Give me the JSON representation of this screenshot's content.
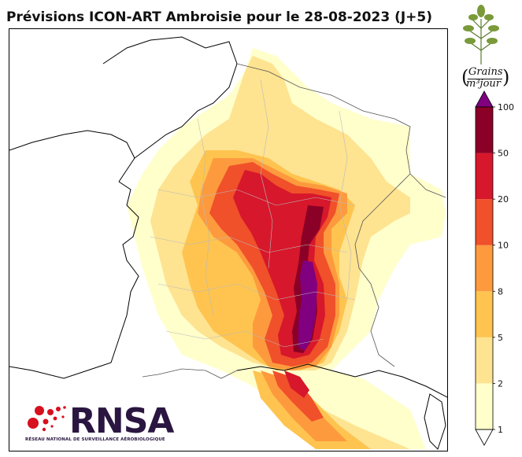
{
  "title": "Prévisions ICON-ART Ambroisie pour le 28-08-2023 (J+5)",
  "unit": {
    "numerator": "Grains",
    "denominator": "m³jour"
  },
  "colorbar": {
    "levels": [
      {
        "label": "1",
        "color": "#ffffcc"
      },
      {
        "label": "2",
        "color": "#fee391"
      },
      {
        "label": "5",
        "color": "#fec44f"
      },
      {
        "label": "8",
        "color": "#fd9a3e"
      },
      {
        "label": "10",
        "color": "#f0502a"
      },
      {
        "label": "20",
        "color": "#d7172b"
      },
      {
        "label": "50",
        "color": "#8b0026"
      },
      {
        "label": "100",
        "color": "#800080"
      }
    ],
    "under_color": "#ffffff",
    "over_color": "#800080"
  },
  "logo": {
    "name": "RNSA",
    "subtitle": "RÉSEAU NATIONAL DE SURVEILLANCE AÉROBIOLOGIQUE",
    "accent": "#d7101e"
  }
}
